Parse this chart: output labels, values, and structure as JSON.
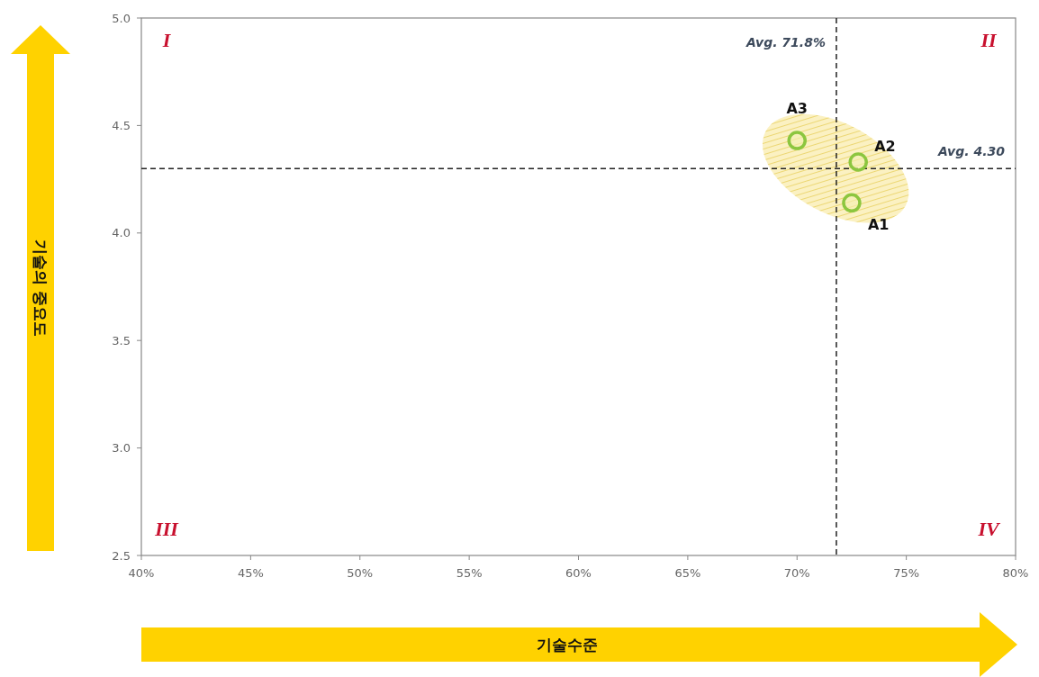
{
  "chart_data": {
    "type": "scatter",
    "xlabel": "기술수준",
    "ylabel": "기술의 중요도",
    "xlim": [
      40,
      80
    ],
    "xticks": [
      {
        "value": 40,
        "label": "40%"
      },
      {
        "value": 45,
        "label": "45%"
      },
      {
        "value": 50,
        "label": "50%"
      },
      {
        "value": 55,
        "label": "55%"
      },
      {
        "value": 60,
        "label": "60%"
      },
      {
        "value": 65,
        "label": "65%"
      },
      {
        "value": 70,
        "label": "70%"
      },
      {
        "value": 75,
        "label": "75%"
      },
      {
        "value": 80,
        "label": "80%"
      }
    ],
    "ylim": [
      2.5,
      5
    ],
    "yticks": [
      2.5,
      {
        "value": 3,
        "label": "3.0"
      },
      3.5,
      {
        "value": 4,
        "label": "4.0"
      },
      4.5,
      {
        "value": 5,
        "label": "5.0"
      }
    ],
    "marker": "circle",
    "series": [
      {
        "name": "A1",
        "color": "#8cc63f",
        "x": [
          72.5
        ],
        "values": [
          4.14
        ]
      },
      {
        "name": "A2",
        "color": "#8cc63f",
        "x": [
          72.8
        ],
        "values": [
          4.33
        ]
      },
      {
        "name": "A3",
        "color": "#8cc63f",
        "x": [
          70.0
        ],
        "values": [
          4.43
        ]
      }
    ],
    "ref_lines": [
      {
        "axis": "x",
        "value": 71.8,
        "label": "Avg. 71.8%",
        "color": "#222222",
        "line_style": "dashed"
      },
      {
        "axis": "y",
        "value": 4.3,
        "label": "Avg. 4.30",
        "color": "#222222",
        "line_style": "dashed"
      }
    ],
    "annotations": [
      "I",
      "II",
      "III",
      "IV"
    ]
  }
}
